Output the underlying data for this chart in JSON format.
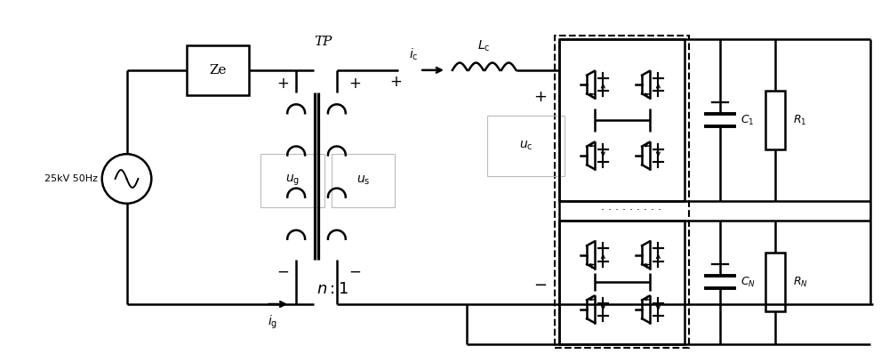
{
  "bg_color": "#ffffff",
  "line_color": "#000000",
  "line_width": 1.8,
  "fig_width": 10.0,
  "fig_height": 3.98,
  "dpi": 100,
  "labels": {
    "source": "25kV 50Hz",
    "Ze": "Ze",
    "TP": "TP",
    "ic": "$i_{\\mathrm{c}}$",
    "ig": "$i_{\\mathrm{g}}$",
    "ug": "$u_{\\mathrm{g}}$",
    "us": "$u_{\\mathrm{s}}$",
    "uc": "$u_{\\mathrm{c}}$",
    "Lc": "$L_{\\mathrm{c}}$",
    "n1": "$n:1$",
    "C1": "$C_1$",
    "R1": "$R_1$",
    "CN": "$C_N$",
    "RN": "$R_N$",
    "dots": "· · · · · · · · ·"
  }
}
